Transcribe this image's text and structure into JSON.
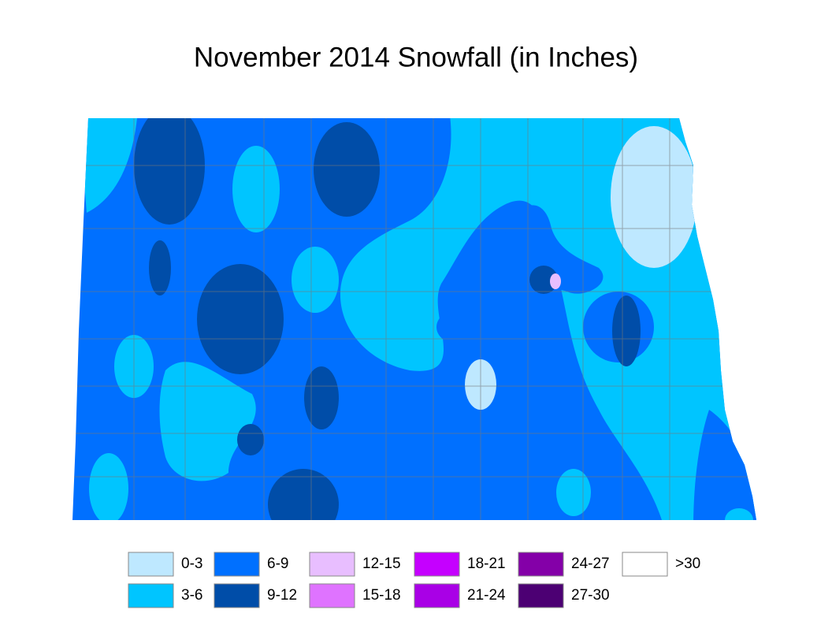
{
  "title": "November 2014 Snowfall (in Inches)",
  "legend": [
    {
      "label": "0-3",
      "color": "#bee8ff"
    },
    {
      "label": "3-6",
      "color": "#00c5ff"
    },
    {
      "label": "6-9",
      "color": "#0070ff"
    },
    {
      "label": "9-12",
      "color": "#004da8"
    },
    {
      "label": "12-15",
      "color": "#e8beff"
    },
    {
      "label": "15-18",
      "color": "#df73ff"
    },
    {
      "label": "18-21",
      "color": "#c500ff"
    },
    {
      "label": "21-24",
      "color": "#a900e6"
    },
    {
      "label": "24-27",
      "color": "#8400a8"
    },
    {
      "label": "27-30",
      "color": "#4c0073"
    },
    {
      "label": ">30",
      "color": "#ffffff"
    }
  ]
}
